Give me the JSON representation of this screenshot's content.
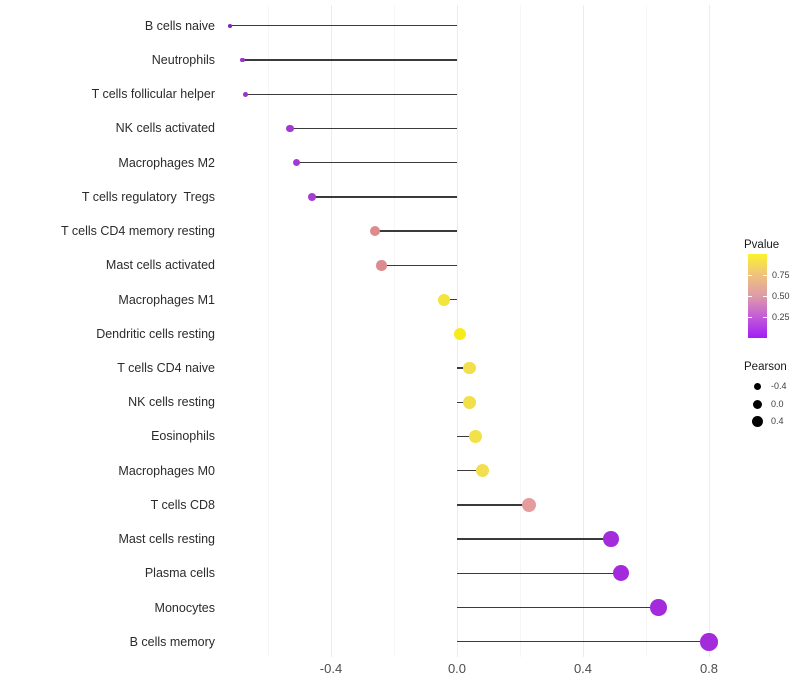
{
  "chart_data": {
    "type": "scatter",
    "variant": "lollipop",
    "orientation": "horizontal",
    "title": "",
    "xlabel": "",
    "ylabel": "",
    "grid": "vertical-only",
    "legend_position": "right",
    "xlim": [
      -0.75,
      0.83
    ],
    "x_ticks": [
      -0.4,
      0.0,
      0.4,
      0.8
    ],
    "x_tick_labels": [
      "-0.4",
      "0.0",
      "0.4",
      "0.8"
    ],
    "x_major_grid": [
      -0.4,
      0.0,
      0.4,
      0.8
    ],
    "x_minor_grid": [
      -0.6,
      -0.2,
      0.2,
      0.6
    ],
    "categories": [
      "B cells naive",
      "Neutrophils",
      "T cells follicular helper",
      "NK cells activated",
      "Macrophages M2",
      "T cells regulatory  Tregs",
      "T cells CD4 memory resting",
      "Mast cells activated",
      "Macrophages M1",
      "Dendritic cells resting",
      "T cells CD4 naive",
      "NK cells resting",
      "Eosinophils",
      "Macrophages M0",
      "T cells CD8",
      "Mast cells resting",
      "Plasma cells",
      "Monocytes",
      "B cells memory"
    ],
    "series": [
      {
        "name": "Pearson",
        "values": [
          -0.72,
          -0.68,
          -0.67,
          -0.53,
          -0.51,
          -0.46,
          -0.26,
          -0.24,
          -0.04,
          0.01,
          0.04,
          0.04,
          0.06,
          0.08,
          0.23,
          0.49,
          0.52,
          0.64,
          0.8
        ]
      }
    ],
    "point_colors": [
      "#8326B8",
      "#9934CB",
      "#9934CB",
      "#A338D3",
      "#A338D3",
      "#A93BD6",
      "#DE8B90",
      "#DE8B90",
      "#F4E53C",
      "#F7EC19",
      "#F1DF4B",
      "#F1DF4B",
      "#F2E148",
      "#F2DF4F",
      "#E59C9C",
      "#A32BDC",
      "#A32BDC",
      "#A32BDC",
      "#A32BDC"
    ],
    "stick_color": "#3a3a3a"
  },
  "legends": {
    "pvalue": {
      "title": "Pvalue",
      "tick_labels": [
        "0.75",
        "0.50",
        "0.25"
      ],
      "gradient_top": "#FBF22F",
      "gradient_middle": "#DE9BA8",
      "gradient_bottom": "#A21EF5"
    },
    "pearson": {
      "title": "Pearson",
      "item_labels": [
        "-0.4",
        "0.0",
        "0.4"
      ]
    }
  }
}
